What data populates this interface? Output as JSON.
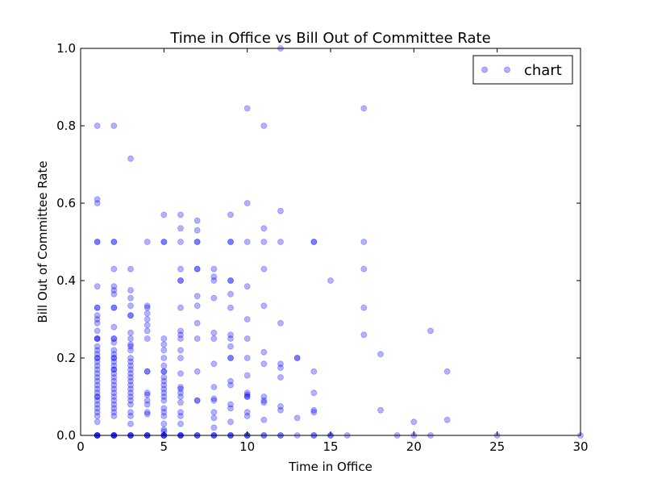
{
  "chart_data": {
    "type": "scatter",
    "title": "Time in Office vs Bill Out of Committee Rate",
    "xlabel": "Time in Office",
    "ylabel": "Bill Out of Committee Rate",
    "xlim": [
      0,
      30
    ],
    "ylim": [
      0,
      1.0
    ],
    "x_ticks": [
      "0",
      "5",
      "10",
      "15",
      "20",
      "25",
      "30"
    ],
    "y_ticks": [
      "0.0",
      "0.2",
      "0.4",
      "0.6",
      "0.8",
      "1.0"
    ],
    "grid": false,
    "legend": {
      "placement": "top-right",
      "entries": [
        "chart"
      ]
    },
    "marker_color": "#0000ff",
    "marker_opacity": 0.3,
    "series": [
      {
        "name": "chart",
        "points": [
          [
            1,
            0
          ],
          [
            1,
            0
          ],
          [
            1,
            0
          ],
          [
            1,
            0
          ],
          [
            1,
            0
          ],
          [
            1,
            0.035
          ],
          [
            1,
            0.05
          ],
          [
            1,
            0.06
          ],
          [
            1,
            0.07
          ],
          [
            1,
            0.08
          ],
          [
            1,
            0.09
          ],
          [
            1,
            0.1
          ],
          [
            1,
            0.1
          ],
          [
            1,
            0.11
          ],
          [
            1,
            0.12
          ],
          [
            1,
            0.13
          ],
          [
            1,
            0.14
          ],
          [
            1,
            0.15
          ],
          [
            1,
            0.16
          ],
          [
            1,
            0.17
          ],
          [
            1,
            0.18
          ],
          [
            1,
            0.19
          ],
          [
            1,
            0.2
          ],
          [
            1,
            0.2
          ],
          [
            1,
            0.21
          ],
          [
            1,
            0.22
          ],
          [
            1,
            0.23
          ],
          [
            1,
            0.25
          ],
          [
            1,
            0.25
          ],
          [
            1,
            0.25
          ],
          [
            1,
            0.27
          ],
          [
            1,
            0.29
          ],
          [
            1,
            0.3
          ],
          [
            1,
            0.31
          ],
          [
            1,
            0.33
          ],
          [
            1,
            0.33
          ],
          [
            1,
            0.385
          ],
          [
            1,
            0.5
          ],
          [
            1,
            0.5
          ],
          [
            1,
            0.6
          ],
          [
            1,
            0.61
          ],
          [
            1,
            0.8
          ],
          [
            2,
            0
          ],
          [
            2,
            0
          ],
          [
            2,
            0
          ],
          [
            2,
            0
          ],
          [
            2,
            0
          ],
          [
            2,
            0.05
          ],
          [
            2,
            0.06
          ],
          [
            2,
            0.07
          ],
          [
            2,
            0.08
          ],
          [
            2,
            0.09
          ],
          [
            2,
            0.1
          ],
          [
            2,
            0.11
          ],
          [
            2,
            0.12
          ],
          [
            2,
            0.13
          ],
          [
            2,
            0.14
          ],
          [
            2,
            0.15
          ],
          [
            2,
            0.16
          ],
          [
            2,
            0.17
          ],
          [
            2,
            0.17
          ],
          [
            2,
            0.18
          ],
          [
            2,
            0.19
          ],
          [
            2,
            0.2
          ],
          [
            2,
            0.2
          ],
          [
            2,
            0.21
          ],
          [
            2,
            0.22
          ],
          [
            2,
            0.24
          ],
          [
            2,
            0.25
          ],
          [
            2,
            0.25
          ],
          [
            2,
            0.28
          ],
          [
            2,
            0.33
          ],
          [
            2,
            0.33
          ],
          [
            2,
            0.365
          ],
          [
            2,
            0.375
          ],
          [
            2,
            0.385
          ],
          [
            2,
            0.43
          ],
          [
            2,
            0.5
          ],
          [
            2,
            0.5
          ],
          [
            2,
            0.8
          ],
          [
            3,
            0
          ],
          [
            3,
            0
          ],
          [
            3,
            0
          ],
          [
            3,
            0
          ],
          [
            3,
            0.03
          ],
          [
            3,
            0.05
          ],
          [
            3,
            0.06
          ],
          [
            3,
            0.08
          ],
          [
            3,
            0.09
          ],
          [
            3,
            0.1
          ],
          [
            3,
            0.11
          ],
          [
            3,
            0.12
          ],
          [
            3,
            0.13
          ],
          [
            3,
            0.14
          ],
          [
            3,
            0.15
          ],
          [
            3,
            0.16
          ],
          [
            3,
            0.17
          ],
          [
            3,
            0.18
          ],
          [
            3,
            0.19
          ],
          [
            3,
            0.2
          ],
          [
            3,
            0.22
          ],
          [
            3,
            0.23
          ],
          [
            3,
            0.235
          ],
          [
            3,
            0.25
          ],
          [
            3,
            0.265
          ],
          [
            3,
            0.31
          ],
          [
            3,
            0.31
          ],
          [
            3,
            0.335
          ],
          [
            3,
            0.355
          ],
          [
            3,
            0.375
          ],
          [
            3,
            0.43
          ],
          [
            3,
            0.715
          ],
          [
            4,
            0
          ],
          [
            4,
            0
          ],
          [
            4,
            0
          ],
          [
            4,
            0
          ],
          [
            4,
            0.055
          ],
          [
            4,
            0.06
          ],
          [
            4,
            0.08
          ],
          [
            4,
            0.09
          ],
          [
            4,
            0.105
          ],
          [
            4,
            0.11
          ],
          [
            4,
            0.165
          ],
          [
            4,
            0.165
          ],
          [
            4,
            0.25
          ],
          [
            4,
            0.27
          ],
          [
            4,
            0.285
          ],
          [
            4,
            0.3
          ],
          [
            4,
            0.315
          ],
          [
            4,
            0.33
          ],
          [
            4,
            0.335
          ],
          [
            4,
            0.5
          ],
          [
            5,
            0
          ],
          [
            5,
            0
          ],
          [
            5,
            0
          ],
          [
            5,
            0
          ],
          [
            5,
            0.01
          ],
          [
            5,
            0.015
          ],
          [
            5,
            0.03
          ],
          [
            5,
            0.05
          ],
          [
            5,
            0.06
          ],
          [
            5,
            0.07
          ],
          [
            5,
            0.09
          ],
          [
            5,
            0.1
          ],
          [
            5,
            0.11
          ],
          [
            5,
            0.12
          ],
          [
            5,
            0.13
          ],
          [
            5,
            0.14
          ],
          [
            5,
            0.15
          ],
          [
            5,
            0.165
          ],
          [
            5,
            0.165
          ],
          [
            5,
            0.18
          ],
          [
            5,
            0.2
          ],
          [
            5,
            0.22
          ],
          [
            5,
            0.235
          ],
          [
            5,
            0.25
          ],
          [
            5,
            0.5
          ],
          [
            5,
            0.5
          ],
          [
            5,
            0.57
          ],
          [
            6,
            0
          ],
          [
            6,
            0
          ],
          [
            6,
            0
          ],
          [
            6,
            0
          ],
          [
            6,
            0.03
          ],
          [
            6,
            0.05
          ],
          [
            6,
            0.06
          ],
          [
            6,
            0.085
          ],
          [
            6,
            0.1
          ],
          [
            6,
            0.11
          ],
          [
            6,
            0.12
          ],
          [
            6,
            0.125
          ],
          [
            6,
            0.16
          ],
          [
            6,
            0.2
          ],
          [
            6,
            0.22
          ],
          [
            6,
            0.25
          ],
          [
            6,
            0.26
          ],
          [
            6,
            0.27
          ],
          [
            6,
            0.33
          ],
          [
            6,
            0.4
          ],
          [
            6,
            0.4
          ],
          [
            6,
            0.43
          ],
          [
            6,
            0.5
          ],
          [
            6,
            0.535
          ],
          [
            6,
            0.57
          ],
          [
            7,
            0
          ],
          [
            7,
            0
          ],
          [
            7,
            0
          ],
          [
            7,
            0.09
          ],
          [
            7,
            0.09
          ],
          [
            7,
            0.165
          ],
          [
            7,
            0.25
          ],
          [
            7,
            0.29
          ],
          [
            7,
            0.335
          ],
          [
            7,
            0.36
          ],
          [
            7,
            0.43
          ],
          [
            7,
            0.43
          ],
          [
            7,
            0.5
          ],
          [
            7,
            0.5
          ],
          [
            7,
            0.53
          ],
          [
            7,
            0.555
          ],
          [
            8,
            0
          ],
          [
            8,
            0
          ],
          [
            8,
            0
          ],
          [
            8,
            0.02
          ],
          [
            8,
            0.045
          ],
          [
            8,
            0.06
          ],
          [
            8,
            0.09
          ],
          [
            8,
            0.095
          ],
          [
            8,
            0.125
          ],
          [
            8,
            0.185
          ],
          [
            8,
            0.25
          ],
          [
            8,
            0.265
          ],
          [
            8,
            0.355
          ],
          [
            8,
            0.4
          ],
          [
            8,
            0.41
          ],
          [
            8,
            0.43
          ],
          [
            9,
            0
          ],
          [
            9,
            0
          ],
          [
            9,
            0
          ],
          [
            9,
            0.035
          ],
          [
            9,
            0.07
          ],
          [
            9,
            0.08
          ],
          [
            9,
            0.13
          ],
          [
            9,
            0.14
          ],
          [
            9,
            0.2
          ],
          [
            9,
            0.2
          ],
          [
            9,
            0.23
          ],
          [
            9,
            0.25
          ],
          [
            9,
            0.26
          ],
          [
            9,
            0.33
          ],
          [
            9,
            0.365
          ],
          [
            9,
            0.4
          ],
          [
            9,
            0.4
          ],
          [
            9,
            0.5
          ],
          [
            9,
            0.5
          ],
          [
            9,
            0.57
          ],
          [
            10,
            0
          ],
          [
            10,
            0
          ],
          [
            10,
            0
          ],
          [
            10,
            0.05
          ],
          [
            10,
            0.06
          ],
          [
            10,
            0.1
          ],
          [
            10,
            0.1
          ],
          [
            10,
            0.105
          ],
          [
            10,
            0.11
          ],
          [
            10,
            0.155
          ],
          [
            10,
            0.2
          ],
          [
            10,
            0.25
          ],
          [
            10,
            0.3
          ],
          [
            10,
            0.385
          ],
          [
            10,
            0.5
          ],
          [
            10,
            0.6
          ],
          [
            10,
            0.845
          ],
          [
            11,
            0
          ],
          [
            11,
            0
          ],
          [
            11,
            0.04
          ],
          [
            11,
            0.085
          ],
          [
            11,
            0.09
          ],
          [
            11,
            0.1
          ],
          [
            11,
            0.185
          ],
          [
            11,
            0.215
          ],
          [
            11,
            0.335
          ],
          [
            11,
            0.43
          ],
          [
            11,
            0.5
          ],
          [
            11,
            0.535
          ],
          [
            11,
            0.8
          ],
          [
            12,
            0
          ],
          [
            12,
            0
          ],
          [
            12,
            0.065
          ],
          [
            12,
            0.075
          ],
          [
            12,
            0.15
          ],
          [
            12,
            0.175
          ],
          [
            12,
            0.185
          ],
          [
            12,
            0.29
          ],
          [
            12,
            0.5
          ],
          [
            12,
            0.58
          ],
          [
            12,
            1.0
          ],
          [
            13,
            0
          ],
          [
            13,
            0.045
          ],
          [
            13,
            0.2
          ],
          [
            13,
            0.2
          ],
          [
            14,
            0
          ],
          [
            14,
            0
          ],
          [
            14,
            0.06
          ],
          [
            14,
            0.065
          ],
          [
            14,
            0.11
          ],
          [
            14,
            0.165
          ],
          [
            14,
            0.5
          ],
          [
            14,
            0.5
          ],
          [
            15,
            0
          ],
          [
            15,
            0
          ],
          [
            15,
            0.4
          ],
          [
            16,
            0
          ],
          [
            17,
            0.26
          ],
          [
            17,
            0.33
          ],
          [
            17,
            0.43
          ],
          [
            17,
            0.5
          ],
          [
            17,
            0.845
          ],
          [
            18,
            0.065
          ],
          [
            18,
            0.21
          ],
          [
            19,
            0
          ],
          [
            20,
            0
          ],
          [
            20,
            0.035
          ],
          [
            21,
            0
          ],
          [
            21,
            0.27
          ],
          [
            22,
            0.04
          ],
          [
            22,
            0.165
          ],
          [
            25,
            0
          ],
          [
            30,
            0
          ]
        ]
      }
    ]
  }
}
